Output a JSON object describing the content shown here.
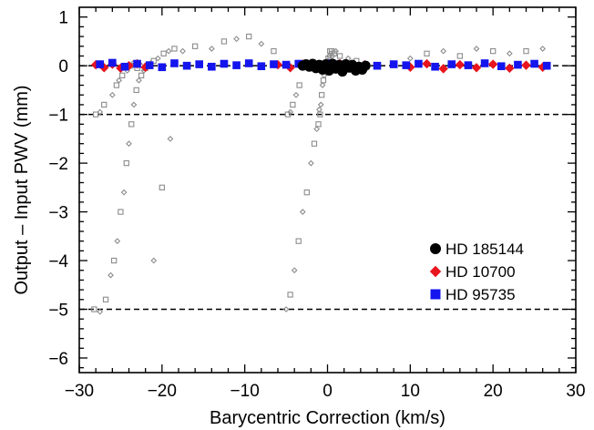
{
  "chart_data": {
    "type": "scatter",
    "xlabel": "Barycentric Correction (km/s)",
    "ylabel": "Output – Input PWV (mm)",
    "xlim": [
      -30,
      30
    ],
    "ylim": [
      -6.3,
      1.2
    ],
    "x_ticks": [
      -30,
      -20,
      -10,
      0,
      10,
      20,
      30
    ],
    "x_tick_labels": [
      "−30",
      "−20",
      "−10",
      "0",
      "10",
      "20",
      "30"
    ],
    "y_ticks": [
      -6,
      -5,
      -4,
      -3,
      -2,
      -1,
      0,
      1
    ],
    "y_tick_labels": [
      "−6",
      "−5",
      "−4",
      "−3",
      "−2",
      "−1",
      "0",
      "1"
    ],
    "reference_lines": [
      0,
      -1,
      -5
    ],
    "legend_position": "lower-right",
    "colors": {
      "hd185144": "#000000",
      "hd10700": "#e8141e",
      "hd95735": "#1414ee",
      "grey_trials": "#8c8c8c",
      "reference_line": "#000000"
    },
    "series": [
      {
        "name": "HD 185144",
        "marker": "circle",
        "x": [
          -3.0,
          -2.6,
          -2.2,
          -1.8,
          -1.4,
          -1.0,
          -0.6,
          -0.2,
          0.2,
          0.6,
          1.0,
          1.4,
          1.8,
          2.2,
          2.6,
          3.0,
          3.4,
          3.8,
          4.2,
          4.6
        ],
        "y": [
          0.0,
          0.03,
          -0.02,
          0.04,
          -0.05,
          0.02,
          -0.08,
          0.03,
          -0.1,
          0.04,
          -0.06,
          0.02,
          -0.12,
          0.03,
          -0.04,
          0.02,
          -0.1,
          -0.02,
          -0.08,
          0.0
        ]
      },
      {
        "name": "HD 10700",
        "marker": "diamond",
        "x": [
          -28.0,
          -27.0,
          -26.0,
          -25.0,
          -24.0,
          -23.0,
          -22.0,
          -6.0,
          -4.5,
          -3.0,
          -1.5,
          0.0,
          1.5,
          3.0,
          4.5,
          10.0,
          12.0,
          14.0,
          16.0,
          18.0,
          20.0,
          22.0,
          24.0,
          26.0
        ],
        "y": [
          0.02,
          -0.04,
          0.03,
          -0.05,
          0.0,
          0.04,
          -0.03,
          0.02,
          -0.04,
          0.03,
          -0.02,
          0.01,
          0.04,
          -0.05,
          0.02,
          -0.03,
          0.04,
          -0.06,
          0.02,
          -0.04,
          0.03,
          -0.05,
          0.01,
          -0.03
        ]
      },
      {
        "name": "HD 95735",
        "marker": "square",
        "x": [
          -27.5,
          -26.0,
          -24.5,
          -23.0,
          -21.5,
          -20.0,
          -18.5,
          -17.0,
          -15.5,
          -14.0,
          -12.5,
          -11.0,
          -9.5,
          -8.0,
          -6.5,
          -5.0,
          -3.5,
          -2.0,
          0.5,
          2.0,
          6.0,
          8.0,
          9.5,
          11.0,
          13.0,
          15.0,
          17.0,
          19.0,
          21.0,
          23.0,
          25.0,
          26.5
        ],
        "y": [
          0.03,
          0.06,
          -0.02,
          0.04,
          0.01,
          -0.03,
          0.05,
          0.0,
          0.03,
          -0.02,
          0.04,
          0.01,
          0.05,
          -0.01,
          0.03,
          0.02,
          0.04,
          -0.03,
          0.05,
          0.02,
          0.0,
          0.03,
          0.01,
          0.04,
          -0.02,
          0.03,
          0.01,
          0.05,
          -0.01,
          0.02,
          0.04,
          0.0
        ]
      },
      {
        "marker": "mixed-open",
        "x": [
          -28.2,
          -27.5,
          -26.8,
          -26.2,
          -25.8,
          -25.4,
          -25.0,
          -24.6,
          -24.3,
          -24.0,
          -23.7,
          -23.4,
          -23.1,
          -22.8,
          -22.5,
          -22.2,
          -21.8,
          -21.4,
          -21.0,
          -20.5,
          -19.8,
          -19.2,
          -18.5,
          -17.5,
          -16.0,
          -14.0,
          -12.5,
          -11.0,
          -9.5,
          -8.0,
          -6.5,
          -5.0,
          -4.5,
          -4.0,
          -3.5,
          -3.0,
          -2.5,
          -2.0,
          -1.6,
          -1.3,
          -1.1,
          -1.0,
          -0.9,
          -0.8,
          -0.7,
          -0.6,
          -0.5,
          -0.4,
          -0.3,
          -0.2,
          -0.1,
          0.0,
          0.1,
          0.2,
          0.3,
          0.4,
          0.5,
          0.6,
          0.8,
          1.0,
          1.5,
          2.5,
          3.5,
          10.0,
          12.0,
          14.0,
          16.0,
          18.0,
          20.0,
          22.0,
          24.0,
          26.0,
          -28.0,
          -27.5,
          -27.0,
          -26.0,
          -25.5,
          -25.2,
          -24.8,
          -24.2,
          -23.8,
          -23.5,
          -23.0,
          -22.5,
          -22.0,
          -21.0,
          -20.0,
          -19.0,
          -4.8,
          -4.5,
          -4.2,
          -3.8,
          -3.4
        ],
        "y": [
          -5.0,
          -5.05,
          -4.8,
          -4.3,
          -4.0,
          -3.6,
          -3.0,
          -2.6,
          -2.0,
          -1.6,
          -1.2,
          -0.8,
          -0.5,
          -0.3,
          -0.2,
          -0.1,
          0.0,
          0.05,
          0.1,
          0.15,
          0.25,
          0.3,
          0.35,
          0.3,
          0.4,
          0.35,
          0.5,
          0.55,
          0.6,
          0.45,
          0.3,
          -5.0,
          -4.7,
          -4.2,
          -3.6,
          -3.0,
          -2.6,
          -2.0,
          -1.6,
          -1.3,
          -1.2,
          -0.9,
          -1.0,
          -0.8,
          -0.6,
          -0.4,
          -0.3,
          -0.2,
          -0.1,
          0.0,
          0.05,
          0.1,
          0.15,
          0.2,
          0.3,
          0.25,
          0.3,
          0.2,
          0.25,
          0.3,
          0.2,
          0.15,
          0.1,
          0.15,
          0.25,
          0.3,
          0.2,
          0.35,
          0.3,
          0.25,
          0.3,
          0.35,
          -1.0,
          -0.95,
          -0.8,
          -0.6,
          -0.4,
          -0.3,
          -0.2,
          -0.1,
          0.0,
          0.05,
          -0.05,
          0.0,
          -0.05,
          -4.0,
          -2.5,
          -1.5,
          -1.0,
          -0.95,
          -0.8,
          -0.6,
          -0.4
        ]
      }
    ]
  }
}
